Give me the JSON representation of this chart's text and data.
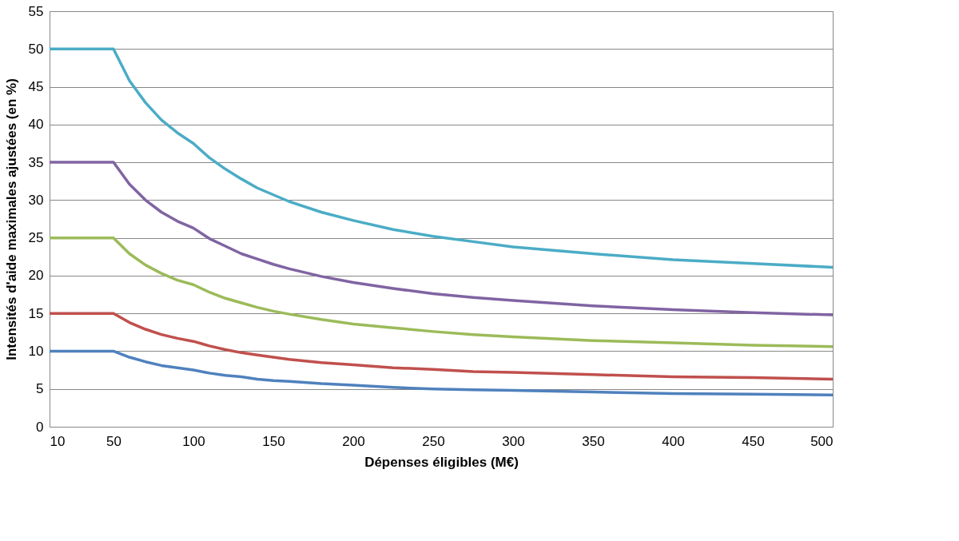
{
  "chart_data": {
    "type": "line",
    "xlabel": "Dépenses éligibles (M€)",
    "ylabel": "Intensités d'aide maximales ajustées (en %)",
    "x": [
      10,
      20,
      30,
      40,
      50,
      60,
      70,
      80,
      90,
      100,
      110,
      120,
      130,
      140,
      150,
      160,
      180,
      200,
      225,
      250,
      275,
      300,
      350,
      400,
      450,
      500
    ],
    "xlim": [
      10,
      500
    ],
    "xticks": [
      10,
      50,
      100,
      150,
      200,
      250,
      300,
      350,
      400,
      450,
      500
    ],
    "ylim": [
      0,
      55
    ],
    "yticks": [
      0,
      5,
      10,
      15,
      20,
      25,
      30,
      35,
      40,
      45,
      50,
      55
    ],
    "grid": "y",
    "legend": false,
    "marker": "none",
    "line_style": "solid",
    "series": [
      {
        "color": "#4bacc6",
        "values": [
          50,
          50,
          50,
          50,
          50,
          45.8,
          42.9,
          40.6,
          38.9,
          37.5,
          35.6,
          34.1,
          32.8,
          31.6,
          30.7,
          29.8,
          28.4,
          27.3,
          26.1,
          25.2,
          24.5,
          23.8,
          22.9,
          22.1,
          21.6,
          21.1
        ]
      },
      {
        "color": "#8064a2",
        "values": [
          35,
          35,
          35,
          35,
          35,
          32.1,
          30.0,
          28.4,
          27.2,
          26.3,
          24.9,
          23.9,
          22.9,
          22.2,
          21.5,
          20.9,
          19.9,
          19.1,
          18.3,
          17.6,
          17.1,
          16.7,
          16.0,
          15.5,
          15.1,
          14.8
        ]
      },
      {
        "color": "#9bbb59",
        "values": [
          25,
          25,
          25,
          25,
          25,
          22.9,
          21.4,
          20.3,
          19.4,
          18.8,
          17.8,
          17.0,
          16.4,
          15.8,
          15.3,
          14.9,
          14.2,
          13.6,
          13.1,
          12.6,
          12.2,
          11.9,
          11.4,
          11.1,
          10.8,
          10.6
        ]
      },
      {
        "color": "#c0504d",
        "values": [
          15,
          15,
          15,
          15,
          15,
          13.8,
          12.9,
          12.2,
          11.7,
          11.3,
          10.7,
          10.2,
          9.8,
          9.5,
          9.2,
          8.9,
          8.5,
          8.2,
          7.8,
          7.6,
          7.3,
          7.2,
          6.9,
          6.6,
          6.5,
          6.3
        ]
      },
      {
        "color": "#4f81bd",
        "values": [
          10,
          10,
          10,
          10,
          10,
          9.2,
          8.6,
          8.1,
          7.8,
          7.5,
          7.1,
          6.8,
          6.6,
          6.3,
          6.1,
          6.0,
          5.7,
          5.5,
          5.2,
          5.0,
          4.9,
          4.8,
          4.6,
          4.4,
          4.3,
          4.2
        ]
      }
    ]
  }
}
